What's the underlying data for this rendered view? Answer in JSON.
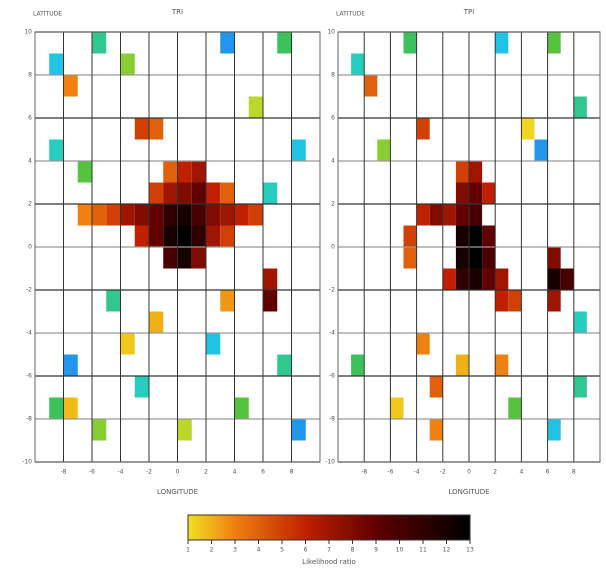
{
  "chart_data": [
    {
      "type": "heatmap",
      "title": "TRI",
      "ylabel": "LATITUDE",
      "xlabel": "LONGITUDE",
      "xlim": [
        -10,
        10
      ],
      "ylim": [
        -10,
        10
      ],
      "xticks": [
        -8,
        -6,
        -4,
        -2,
        0,
        2,
        4,
        6,
        8
      ],
      "yticks": [
        -10,
        -8,
        -6,
        -4,
        -2,
        0,
        2,
        4,
        6,
        8,
        10
      ],
      "grid": true,
      "cells": [
        [
          -5,
          1,
          5
        ],
        [
          -4,
          1,
          7
        ],
        [
          -3,
          1,
          8
        ],
        [
          -2,
          1,
          9
        ],
        [
          -1,
          1,
          11
        ],
        [
          0,
          1,
          12
        ],
        [
          1,
          1,
          10
        ],
        [
          2,
          1,
          8
        ],
        [
          3,
          1,
          7
        ],
        [
          4,
          1,
          6
        ],
        [
          5,
          1,
          5
        ],
        [
          -3,
          0,
          6
        ],
        [
          -2,
          0,
          9
        ],
        [
          -1,
          0,
          12
        ],
        [
          0,
          0,
          13
        ],
        [
          1,
          0,
          11
        ],
        [
          2,
          0,
          7
        ],
        [
          3,
          0,
          5
        ],
        [
          -1,
          -1,
          10
        ],
        [
          0,
          -1,
          12
        ],
        [
          1,
          -1,
          8
        ],
        [
          -2,
          2,
          5
        ],
        [
          -1,
          2,
          7
        ],
        [
          0,
          2,
          8
        ],
        [
          1,
          2,
          9
        ],
        [
          2,
          2,
          6
        ],
        [
          3,
          2,
          4
        ],
        [
          0,
          3,
          6
        ],
        [
          1,
          3,
          7
        ],
        [
          -1,
          3,
          4
        ],
        [
          6,
          -2,
          7
        ],
        [
          6,
          -3,
          9
        ],
        [
          -6,
          1,
          4
        ],
        [
          -7,
          1,
          3
        ],
        [
          -3,
          5,
          5
        ],
        [
          -2,
          5,
          4
        ],
        [
          -8,
          7,
          3
        ],
        [
          -9,
          8,
          0.3
        ],
        [
          -6,
          9,
          0.5
        ],
        [
          -4,
          8,
          0.8
        ],
        [
          3,
          9,
          0.2
        ],
        [
          7,
          9,
          0.6
        ],
        [
          -9,
          4,
          0.4
        ],
        [
          -7,
          3,
          0.7
        ],
        [
          8,
          4,
          0.3
        ],
        [
          5,
          6,
          0.9
        ],
        [
          -5,
          -3,
          0.5
        ],
        [
          -8,
          -6,
          0.2
        ],
        [
          -9,
          -8,
          0.6
        ],
        [
          -6,
          -9,
          0.8
        ],
        [
          -3,
          -7,
          0.4
        ],
        [
          2,
          -5,
          0.3
        ],
        [
          4,
          -8,
          0.7
        ],
        [
          7,
          -6,
          0.5
        ],
        [
          8,
          -9,
          0.2
        ],
        [
          -2,
          -4,
          2
        ],
        [
          -4,
          -5,
          1.5
        ],
        [
          3,
          -3,
          2.5
        ],
        [
          -8,
          -8,
          1.8
        ],
        [
          0,
          -9,
          0.9
        ],
        [
          6,
          2,
          0.4
        ]
      ]
    },
    {
      "type": "heatmap",
      "title": "TPI",
      "ylabel": "LATITUDE",
      "xlabel": "LONGITUDE",
      "xlim": [
        -10,
        10
      ],
      "ylim": [
        -10,
        10
      ],
      "xticks": [
        -8,
        -6,
        -4,
        -2,
        0,
        2,
        4,
        6,
        8
      ],
      "yticks": [
        -10,
        -8,
        -6,
        -4,
        -2,
        0,
        2,
        4,
        6,
        8,
        10
      ],
      "grid": true,
      "cells": [
        [
          -4,
          1,
          6
        ],
        [
          -3,
          1,
          8
        ],
        [
          -2,
          1,
          7
        ],
        [
          -1,
          1,
          9
        ],
        [
          0,
          1,
          10
        ],
        [
          -1,
          2,
          8
        ],
        [
          0,
          2,
          9
        ],
        [
          1,
          2,
          6
        ],
        [
          -1,
          3,
          5
        ],
        [
          0,
          3,
          7
        ],
        [
          -1,
          0,
          12
        ],
        [
          0,
          0,
          13
        ],
        [
          1,
          0,
          9
        ],
        [
          -1,
          -1,
          12
        ],
        [
          0,
          -1,
          13
        ],
        [
          1,
          -1,
          10
        ],
        [
          -1,
          -2,
          11
        ],
        [
          0,
          -2,
          12
        ],
        [
          1,
          -2,
          9
        ],
        [
          2,
          -2,
          7
        ],
        [
          -2,
          -2,
          6
        ],
        [
          2,
          -3,
          6
        ],
        [
          3,
          -3,
          5
        ],
        [
          6,
          -1,
          8
        ],
        [
          6,
          -2,
          12
        ],
        [
          7,
          -2,
          10
        ],
        [
          6,
          -3,
          7
        ],
        [
          -5,
          0,
          5
        ],
        [
          -5,
          -1,
          4
        ],
        [
          -4,
          -5,
          3
        ],
        [
          -3,
          -7,
          4
        ],
        [
          2,
          -6,
          3
        ],
        [
          -4,
          5,
          5
        ],
        [
          -8,
          7,
          4
        ],
        [
          -3,
          -9,
          3
        ],
        [
          -9,
          8,
          0.4
        ],
        [
          -5,
          9,
          0.6
        ],
        [
          2,
          9,
          0.3
        ],
        [
          6,
          9,
          0.7
        ],
        [
          8,
          6,
          0.5
        ],
        [
          -7,
          4,
          0.8
        ],
        [
          5,
          4,
          0.2
        ],
        [
          8,
          -4,
          0.4
        ],
        [
          -9,
          -6,
          0.6
        ],
        [
          -6,
          -8,
          1.5
        ],
        [
          3,
          -8,
          0.7
        ],
        [
          6,
          -9,
          0.3
        ],
        [
          -1,
          -6,
          2
        ],
        [
          8,
          -7,
          0.5
        ],
        [
          4,
          5,
          1.2
        ]
      ]
    }
  ],
  "colorbar": {
    "label": "Likelihood ratio",
    "lim": [
      1,
      13
    ],
    "ticks": [
      1,
      2,
      3,
      4,
      5,
      6,
      7,
      8,
      9,
      10,
      11,
      12,
      13
    ],
    "colormap": [
      {
        "value": 0,
        "color": "#2040ff"
      },
      {
        "value": 0.33,
        "color": "#20d0e0"
      },
      {
        "value": 0.66,
        "color": "#40c040"
      },
      {
        "value": 1,
        "color": "#f0e020"
      },
      {
        "value": 3,
        "color": "#f08010"
      },
      {
        "value": 6,
        "color": "#c02000"
      },
      {
        "value": 9,
        "color": "#600000"
      },
      {
        "value": 13,
        "color": "#000000"
      }
    ]
  }
}
